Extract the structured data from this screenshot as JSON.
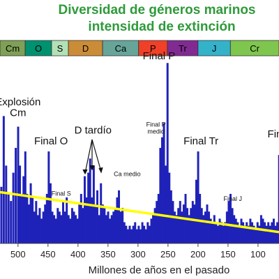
{
  "chart_data": {
    "type": "bar",
    "title_line1": "Diversidad de géneros marinos",
    "title_line2": "intensidad de extinción",
    "xlabel": "Millones de años en el pasado",
    "xlim": [
      530,
      65
    ],
    "ylim": [
      0,
      55
    ],
    "x_ticks": [
      500,
      450,
      400,
      350,
      300,
      250,
      200,
      150,
      100
    ],
    "periods": [
      {
        "label": "Cm",
        "start": 542,
        "end": 488,
        "color": "#7fa056"
      },
      {
        "label": "O",
        "start": 488,
        "end": 444,
        "color": "#009270"
      },
      {
        "label": "S",
        "start": 444,
        "end": 416,
        "color": "#b3e1b6"
      },
      {
        "label": "D",
        "start": 416,
        "end": 359,
        "color": "#cb8c37"
      },
      {
        "label": "Ca",
        "start": 359,
        "end": 299,
        "color": "#67a599"
      },
      {
        "label": "P",
        "start": 299,
        "end": 251,
        "color": "#f04028"
      },
      {
        "label": "Tr",
        "start": 251,
        "end": 200,
        "color": "#812b92"
      },
      {
        "label": "J",
        "start": 200,
        "end": 146,
        "color": "#34b2c9"
      },
      {
        "label": "Cr",
        "start": 146,
        "end": 65,
        "color": "#7fc64e"
      }
    ],
    "series": [
      {
        "values": [
          [
            528,
            16
          ],
          [
            524,
            36
          ],
          [
            520,
            22
          ],
          [
            516,
            14
          ],
          [
            512,
            12
          ],
          [
            508,
            20
          ],
          [
            504,
            27
          ],
          [
            500,
            33
          ],
          [
            497,
            22
          ],
          [
            494,
            14
          ],
          [
            491,
            19
          ],
          [
            488,
            26
          ],
          [
            485,
            14
          ],
          [
            482,
            11
          ],
          [
            479,
            17
          ],
          [
            476,
            13
          ],
          [
            473,
            9
          ],
          [
            470,
            12
          ],
          [
            467,
            8
          ],
          [
            464,
            10
          ],
          [
            461,
            7
          ],
          [
            458,
            9
          ],
          [
            455,
            11
          ],
          [
            452,
            14
          ],
          [
            449,
            26
          ],
          [
            446,
            17
          ],
          [
            443,
            9
          ],
          [
            440,
            8
          ],
          [
            437,
            7
          ],
          [
            434,
            10
          ],
          [
            431,
            9
          ],
          [
            428,
            8
          ],
          [
            425,
            12
          ],
          [
            422,
            9
          ],
          [
            419,
            13
          ],
          [
            416,
            8
          ],
          [
            413,
            7
          ],
          [
            410,
            10
          ],
          [
            407,
            9
          ],
          [
            404,
            8
          ],
          [
            401,
            7
          ],
          [
            398,
            11
          ],
          [
            395,
            14
          ],
          [
            392,
            10
          ],
          [
            389,
            19
          ],
          [
            386,
            13
          ],
          [
            383,
            20
          ],
          [
            380,
            24
          ],
          [
            377,
            13
          ],
          [
            374,
            22
          ],
          [
            371,
            11
          ],
          [
            368,
            15
          ],
          [
            365,
            8
          ],
          [
            362,
            17
          ],
          [
            359,
            11
          ],
          [
            356,
            10
          ],
          [
            353,
            8
          ],
          [
            350,
            9
          ],
          [
            347,
            7
          ],
          [
            344,
            8
          ],
          [
            341,
            9
          ],
          [
            338,
            10
          ],
          [
            335,
            13
          ],
          [
            332,
            15
          ],
          [
            329,
            9
          ],
          [
            326,
            10
          ],
          [
            323,
            6
          ],
          [
            320,
            5
          ],
          [
            317,
            4
          ],
          [
            314,
            5
          ],
          [
            311,
            4
          ],
          [
            308,
            5
          ],
          [
            305,
            6
          ],
          [
            302,
            4
          ],
          [
            299,
            5
          ],
          [
            296,
            4
          ],
          [
            293,
            6
          ],
          [
            290,
            5
          ],
          [
            287,
            4
          ],
          [
            284,
            6
          ],
          [
            281,
            5
          ],
          [
            278,
            7
          ],
          [
            275,
            8
          ],
          [
            272,
            10
          ],
          [
            269,
            12
          ],
          [
            266,
            14
          ],
          [
            263,
            27
          ],
          [
            260,
            30
          ],
          [
            257,
            34
          ],
          [
            254,
            22
          ],
          [
            251,
            51
          ],
          [
            248,
            20
          ],
          [
            245,
            15
          ],
          [
            242,
            12
          ],
          [
            239,
            9
          ],
          [
            236,
            8
          ],
          [
            233,
            10
          ],
          [
            230,
            12
          ],
          [
            227,
            9
          ],
          [
            224,
            11
          ],
          [
            221,
            14
          ],
          [
            218,
            10
          ],
          [
            215,
            8
          ],
          [
            212,
            10
          ],
          [
            209,
            12
          ],
          [
            206,
            11
          ],
          [
            203,
            18
          ],
          [
            200,
            26
          ],
          [
            197,
            14
          ],
          [
            194,
            10
          ],
          [
            191,
            8
          ],
          [
            188,
            9
          ],
          [
            185,
            11
          ],
          [
            182,
            9
          ],
          [
            179,
            7
          ],
          [
            176,
            6
          ],
          [
            173,
            8
          ],
          [
            170,
            6
          ],
          [
            167,
            5
          ],
          [
            164,
            7
          ],
          [
            161,
            6
          ],
          [
            158,
            5
          ],
          [
            155,
            6
          ],
          [
            152,
            9
          ],
          [
            149,
            12
          ],
          [
            146,
            14
          ],
          [
            143,
            10
          ],
          [
            140,
            8
          ],
          [
            137,
            7
          ],
          [
            134,
            6
          ],
          [
            131,
            5
          ],
          [
            128,
            7
          ],
          [
            125,
            6
          ],
          [
            122,
            5
          ],
          [
            119,
            6
          ],
          [
            116,
            5
          ],
          [
            113,
            7
          ],
          [
            110,
            6
          ],
          [
            107,
            5
          ],
          [
            104,
            4
          ],
          [
            101,
            6
          ],
          [
            98,
            5
          ],
          [
            95,
            8
          ],
          [
            92,
            7
          ],
          [
            89,
            6
          ],
          [
            86,
            5
          ],
          [
            83,
            6
          ],
          [
            80,
            5
          ],
          [
            77,
            6
          ],
          [
            74,
            7
          ],
          [
            71,
            5
          ],
          [
            68,
            6
          ],
          [
            65,
            25
          ]
        ]
      }
    ],
    "trend_line": [
      [
        530,
        14.5
      ],
      [
        65,
        3.2
      ]
    ],
    "annotations": [
      {
        "text": "Explosión",
        "x": 500,
        "y": 39,
        "size": "big"
      },
      {
        "text": "Cm",
        "x": 500,
        "y": 36,
        "size": "big"
      },
      {
        "text": "Final O",
        "x": 445,
        "y": 28,
        "size": "big"
      },
      {
        "text": "D tardío",
        "x": 375,
        "y": 31,
        "size": "big"
      },
      {
        "text": "Final S",
        "x": 428,
        "y": 13.5,
        "size": "small"
      },
      {
        "text": "Ca medio",
        "x": 318,
        "y": 19,
        "size": "small"
      },
      {
        "text": "Final P",
        "x": 265,
        "y": 52,
        "size": "big"
      },
      {
        "text": "Final P",
        "x": 270,
        "y": 33,
        "size": "small"
      },
      {
        "text": "medio",
        "x": 270,
        "y": 31,
        "size": "small"
      },
      {
        "text": "Final Tr",
        "x": 195,
        "y": 28,
        "size": "big"
      },
      {
        "text": "Final J",
        "x": 142,
        "y": 12,
        "size": "small"
      },
      {
        "text": "Fin",
        "x": 72,
        "y": 30,
        "size": "big"
      }
    ],
    "colors": {
      "bars": "#1f22b8",
      "trend": "#ffff00",
      "title": "#2e9a3a"
    }
  }
}
